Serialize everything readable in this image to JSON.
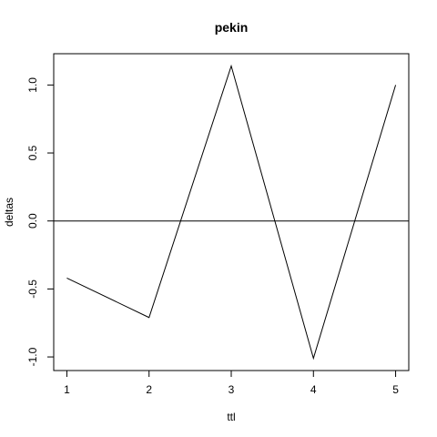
{
  "chart_data": {
    "type": "line",
    "title": "pekin",
    "xlabel": "ttl",
    "ylabel": "deltas",
    "x": [
      1,
      2,
      3,
      4,
      5
    ],
    "series": [
      {
        "values": [
          -0.42,
          -0.71,
          1.14,
          -1.01,
          1.0
        ],
        "color": "#000000"
      }
    ],
    "xlim": [
      0.84,
      5.16
    ],
    "ylim": [
      -1.1,
      1.23
    ],
    "xticks": [
      1,
      2,
      3,
      4,
      5
    ],
    "xtick_labels": [
      "1",
      "2",
      "3",
      "4",
      "5"
    ],
    "yticks": [
      -1.0,
      -0.5,
      0.0,
      0.5,
      1.0
    ],
    "ytick_labels": [
      "-1.0",
      "-0.5",
      "0.0",
      "0.5",
      "1.0"
    ],
    "hline": 0,
    "grid": false,
    "legend": "none"
  }
}
